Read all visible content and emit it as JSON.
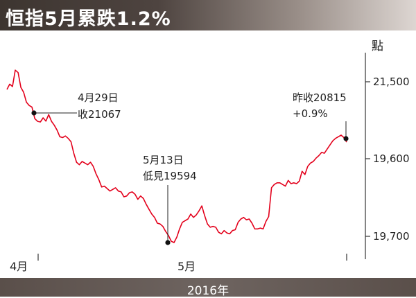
{
  "title": "恒指5月累跌1.2%",
  "footer": "2016年",
  "chart_data": {
    "type": "line",
    "unit_label": "點",
    "y_ticks": [
      "21,500",
      "19,600",
      "19,700"
    ],
    "x_ticks": [
      "4月",
      "5月"
    ],
    "line_color": "#e3001b",
    "annotations": [
      {
        "lines": [
          "4月29日",
          "收21067"
        ]
      },
      {
        "lines": [
          "5月13日",
          "低見19594"
        ]
      },
      {
        "lines": [
          "昨收20815",
          "+0.9%"
        ]
      }
    ],
    "series": [
      {
        "values": [
          21455,
          21520,
          21490,
          21690,
          21660,
          21480,
          21420,
          21300,
          21260,
          21240,
          21100,
          21067,
          21060,
          21110,
          21070,
          21150,
          21067,
          21020,
          20960,
          20880,
          20870,
          20890,
          20860,
          20820,
          20680,
          20570,
          20540,
          20580,
          20560,
          20540,
          20570,
          20520,
          20430,
          20360,
          20270,
          20280,
          20250,
          20220,
          20240,
          20260,
          20220,
          20210,
          20150,
          20160,
          20200,
          20210,
          20180,
          20120,
          20160,
          20130,
          20060,
          20000,
          19940,
          19900,
          19830,
          19820,
          19790,
          19730,
          19680,
          19610,
          19594,
          19660,
          19760,
          19840,
          19860,
          19880,
          19940,
          19900,
          19930,
          19980,
          20040,
          19920,
          19820,
          19780,
          19790,
          19780,
          19720,
          19700,
          19740,
          19710,
          19700,
          19740,
          19750,
          19840,
          19880,
          19900,
          19870,
          19880,
          19830,
          19760,
          19760,
          19770,
          19760,
          19850,
          19910,
          20260,
          20300,
          20320,
          20320,
          20300,
          20280,
          20350,
          20310,
          20320,
          20310,
          20340,
          20460,
          20420,
          20520,
          20560,
          20580,
          20620,
          20650,
          20690,
          20680,
          20730,
          20780,
          20830,
          20860,
          20880,
          20900,
          20870,
          20815
        ]
      }
    ]
  }
}
